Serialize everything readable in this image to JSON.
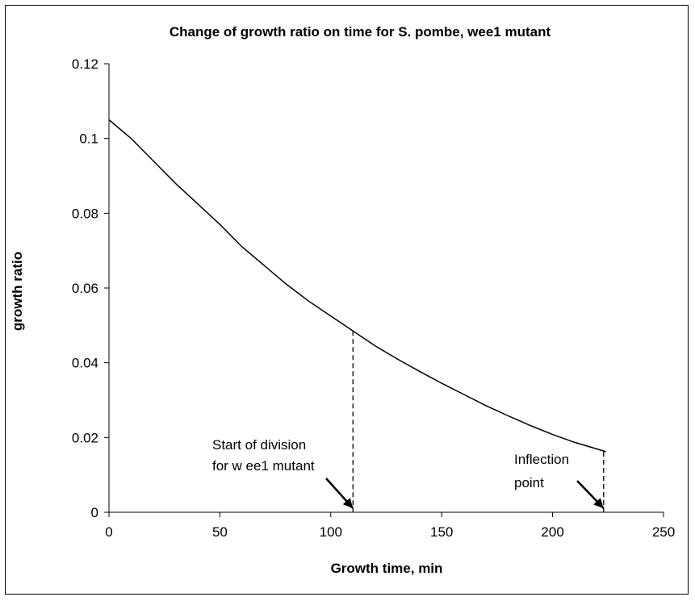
{
  "chart_data": {
    "type": "line",
    "title": "Change of growth ratio on time for S. pombe, wee1 mutant",
    "xlabel": "Growth time, min",
    "ylabel": "growth ratio",
    "xlim": [
      0,
      250
    ],
    "ylim": [
      0,
      0.12
    ],
    "xticks": [
      "0",
      "50",
      "100",
      "150",
      "200",
      "250"
    ],
    "yticks": [
      "0",
      "0.02",
      "0.04",
      "0.06",
      "0.08",
      "0.1",
      "0.12"
    ],
    "grid": false,
    "legend": "none",
    "series": [
      {
        "x": [
          0,
          10,
          20,
          30,
          40,
          50,
          60,
          70,
          80,
          90,
          100,
          110,
          120,
          130,
          140,
          150,
          160,
          170,
          180,
          190,
          200,
          210,
          224
        ],
        "y": [
          0.105,
          0.1,
          0.094,
          0.088,
          0.0825,
          0.077,
          0.071,
          0.066,
          0.061,
          0.0565,
          0.0525,
          0.0485,
          0.0445,
          0.041,
          0.0377,
          0.0345,
          0.0315,
          0.0285,
          0.0258,
          0.0232,
          0.0208,
          0.0187,
          0.0162
        ]
      }
    ],
    "annotations": [
      {
        "lines": [
          "Start of division",
          "for w ee1 mutant"
        ],
        "x": 110,
        "y_line": 0.0485
      },
      {
        "lines": [
          "Inflection",
          "point"
        ],
        "x": 223,
        "y_line": 0.0162
      }
    ],
    "colors": {
      "line": "#000000",
      "axis": "#000000",
      "background": "#ffffff"
    }
  }
}
